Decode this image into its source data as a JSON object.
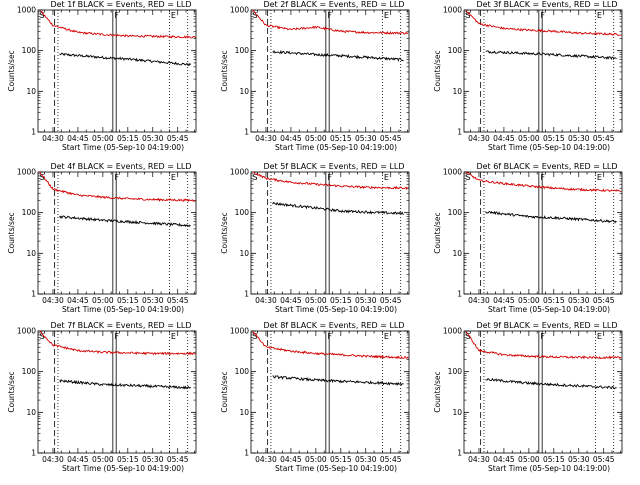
{
  "colors": {
    "events": "#000000",
    "lld": "#d40000",
    "axes": "#000000",
    "background": "#ffffff"
  },
  "figure": {
    "layout": "3x3 grid of panels",
    "y_scale": "log",
    "ylim": [
      1,
      1000
    ],
    "xlim": [
      "04:21",
      "05:56"
    ],
    "yticks": [
      1,
      10,
      100,
      1000
    ],
    "ytick_labels": [
      "1",
      "10",
      "100",
      "1000"
    ],
    "xticks": [
      "04:30",
      "04:45",
      "05:00",
      "05:15",
      "05:30",
      "05:45"
    ],
    "ylabel": "Counts/sec",
    "xlabel": "Start Time (05-Sep-10 04:19:00)",
    "markers": [
      {
        "label": "S",
        "time": "04:21",
        "style": "none"
      },
      {
        "label": "",
        "time": "04:31",
        "style": "dashed"
      },
      {
        "label": "",
        "time": "04:33",
        "style": "dotted"
      },
      {
        "label": "F",
        "time": "05:06",
        "style": "solid"
      },
      {
        "label": "",
        "time": "05:08",
        "style": "solid"
      },
      {
        "label": "E",
        "time": "05:40",
        "style": "dotted"
      },
      {
        "label": "",
        "time": "05:51",
        "style": "dotted"
      }
    ],
    "grid": false
  },
  "chart_data": [
    {
      "type": "line",
      "title": "Det 1f BLACK = Events, RED = LLD",
      "series": [
        {
          "name": "Events",
          "color": "black",
          "values": [
            {
              "x": "04:34",
              "y": 82
            },
            {
              "x": "05:00",
              "y": 68
            },
            {
              "x": "05:15",
              "y": 62
            },
            {
              "x": "05:53",
              "y": 45
            }
          ]
        },
        {
          "name": "LLD",
          "color": "red",
          "values": [
            {
              "x": "04:22",
              "y": 1000
            },
            {
              "x": "04:30",
              "y": 420
            },
            {
              "x": "04:45",
              "y": 280
            },
            {
              "x": "05:00",
              "y": 250
            },
            {
              "x": "05:15",
              "y": 230
            },
            {
              "x": "05:30",
              "y": 225
            },
            {
              "x": "05:56",
              "y": 215
            }
          ]
        }
      ]
    },
    {
      "type": "line",
      "title": "Det 2f BLACK = Events, RED = LLD",
      "series": [
        {
          "name": "Events",
          "color": "black",
          "values": [
            {
              "x": "04:34",
              "y": 95
            },
            {
              "x": "05:00",
              "y": 80
            },
            {
              "x": "05:15",
              "y": 75
            },
            {
              "x": "05:53",
              "y": 60
            }
          ]
        },
        {
          "name": "LLD",
          "color": "red",
          "values": [
            {
              "x": "04:22",
              "y": 1000
            },
            {
              "x": "04:30",
              "y": 420
            },
            {
              "x": "04:45",
              "y": 330
            },
            {
              "x": "05:00",
              "y": 380
            },
            {
              "x": "05:15",
              "y": 300
            },
            {
              "x": "05:30",
              "y": 280
            },
            {
              "x": "05:56",
              "y": 270
            }
          ]
        }
      ]
    },
    {
      "type": "line",
      "title": "Det 3f BLACK = Events, RED = LLD",
      "series": [
        {
          "name": "Events",
          "color": "black",
          "values": [
            {
              "x": "04:34",
              "y": 95
            },
            {
              "x": "05:00",
              "y": 85
            },
            {
              "x": "05:15",
              "y": 80
            },
            {
              "x": "05:53",
              "y": 65
            }
          ]
        },
        {
          "name": "LLD",
          "color": "red",
          "values": [
            {
              "x": "04:22",
              "y": 1000
            },
            {
              "x": "04:30",
              "y": 460
            },
            {
              "x": "04:45",
              "y": 350
            },
            {
              "x": "05:00",
              "y": 320
            },
            {
              "x": "05:15",
              "y": 300
            },
            {
              "x": "05:30",
              "y": 270
            },
            {
              "x": "05:56",
              "y": 250
            }
          ]
        }
      ]
    },
    {
      "type": "line",
      "title": "Det 4f BLACK = Events, RED = LLD",
      "series": [
        {
          "name": "Events",
          "color": "black",
          "values": [
            {
              "x": "04:34",
              "y": 80
            },
            {
              "x": "05:00",
              "y": 65
            },
            {
              "x": "05:15",
              "y": 60
            },
            {
              "x": "05:53",
              "y": 48
            }
          ]
        },
        {
          "name": "LLD",
          "color": "red",
          "values": [
            {
              "x": "04:22",
              "y": 1000
            },
            {
              "x": "04:30",
              "y": 380
            },
            {
              "x": "04:45",
              "y": 270
            },
            {
              "x": "05:00",
              "y": 240
            },
            {
              "x": "05:15",
              "y": 220
            },
            {
              "x": "05:30",
              "y": 210
            },
            {
              "x": "05:56",
              "y": 200
            }
          ]
        }
      ]
    },
    {
      "type": "line",
      "title": "Det 5f BLACK = Events, RED = LLD",
      "series": [
        {
          "name": "Events",
          "color": "black",
          "values": [
            {
              "x": "04:34",
              "y": 170
            },
            {
              "x": "05:00",
              "y": 130
            },
            {
              "x": "05:15",
              "y": 110
            },
            {
              "x": "05:53",
              "y": 95
            }
          ]
        },
        {
          "name": "LLD",
          "color": "red",
          "values": [
            {
              "x": "04:22",
              "y": 1000
            },
            {
              "x": "04:30",
              "y": 700
            },
            {
              "x": "04:45",
              "y": 560
            },
            {
              "x": "05:00",
              "y": 500
            },
            {
              "x": "05:15",
              "y": 450
            },
            {
              "x": "05:30",
              "y": 420
            },
            {
              "x": "05:56",
              "y": 400
            }
          ]
        }
      ]
    },
    {
      "type": "line",
      "title": "Det 6f BLACK = Events, RED = LLD",
      "series": [
        {
          "name": "Events",
          "color": "black",
          "values": [
            {
              "x": "04:34",
              "y": 105
            },
            {
              "x": "05:00",
              "y": 80
            },
            {
              "x": "05:15",
              "y": 75
            },
            {
              "x": "05:53",
              "y": 60
            }
          ]
        },
        {
          "name": "LLD",
          "color": "red",
          "values": [
            {
              "x": "04:22",
              "y": 1000
            },
            {
              "x": "04:30",
              "y": 620
            },
            {
              "x": "04:45",
              "y": 520
            },
            {
              "x": "05:00",
              "y": 450
            },
            {
              "x": "05:15",
              "y": 400
            },
            {
              "x": "05:30",
              "y": 370
            },
            {
              "x": "05:56",
              "y": 340
            }
          ]
        }
      ]
    },
    {
      "type": "line",
      "title": "Det 7f BLACK = Events, RED = LLD",
      "series": [
        {
          "name": "Events",
          "color": "black",
          "values": [
            {
              "x": "04:34",
              "y": 60
            },
            {
              "x": "05:00",
              "y": 48
            },
            {
              "x": "05:15",
              "y": 46
            },
            {
              "x": "05:53",
              "y": 40
            }
          ]
        },
        {
          "name": "LLD",
          "color": "red",
          "values": [
            {
              "x": "04:22",
              "y": 1000
            },
            {
              "x": "04:30",
              "y": 450
            },
            {
              "x": "04:45",
              "y": 330
            },
            {
              "x": "05:00",
              "y": 300
            },
            {
              "x": "05:15",
              "y": 290
            },
            {
              "x": "05:30",
              "y": 280
            },
            {
              "x": "05:56",
              "y": 280
            }
          ]
        }
      ]
    },
    {
      "type": "line",
      "title": "Det 8f BLACK = Events, RED = LLD",
      "series": [
        {
          "name": "Events",
          "color": "black",
          "values": [
            {
              "x": "04:34",
              "y": 75
            },
            {
              "x": "05:00",
              "y": 62
            },
            {
              "x": "05:15",
              "y": 58
            },
            {
              "x": "05:53",
              "y": 50
            }
          ]
        },
        {
          "name": "LLD",
          "color": "red",
          "values": [
            {
              "x": "04:22",
              "y": 1000
            },
            {
              "x": "04:30",
              "y": 400
            },
            {
              "x": "04:45",
              "y": 320
            },
            {
              "x": "05:00",
              "y": 280
            },
            {
              "x": "05:15",
              "y": 260
            },
            {
              "x": "05:30",
              "y": 240
            },
            {
              "x": "05:56",
              "y": 220
            }
          ]
        }
      ]
    },
    {
      "type": "line",
      "title": "Det 9f BLACK = Events, RED = LLD",
      "series": [
        {
          "name": "Events",
          "color": "black",
          "values": [
            {
              "x": "04:34",
              "y": 65
            },
            {
              "x": "05:00",
              "y": 52
            },
            {
              "x": "05:15",
              "y": 48
            },
            {
              "x": "05:53",
              "y": 40
            }
          ]
        },
        {
          "name": "LLD",
          "color": "red",
          "values": [
            {
              "x": "04:22",
              "y": 1000
            },
            {
              "x": "04:30",
              "y": 330
            },
            {
              "x": "04:45",
              "y": 260
            },
            {
              "x": "05:00",
              "y": 240
            },
            {
              "x": "05:15",
              "y": 230
            },
            {
              "x": "05:30",
              "y": 225
            },
            {
              "x": "05:56",
              "y": 220
            }
          ]
        }
      ]
    }
  ]
}
